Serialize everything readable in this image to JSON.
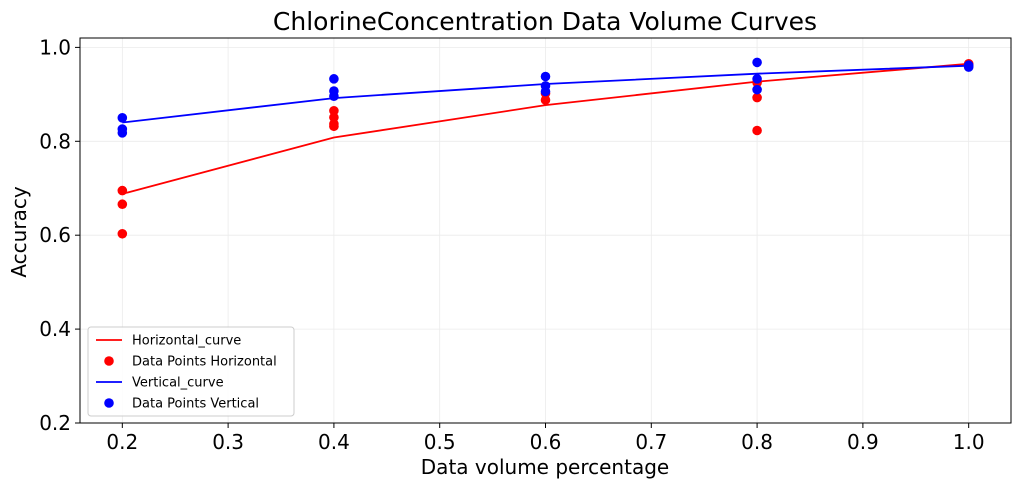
{
  "chart_data": {
    "type": "scatter",
    "title": "ChlorineConcentration Data Volume Curves",
    "xlabel": "Data volume percentage",
    "ylabel": "Accuracy",
    "xlim": [
      0.16,
      1.04
    ],
    "ylim": [
      0.2,
      1.02
    ],
    "xticks": [
      "0.2",
      "0.3",
      "0.4",
      "0.5",
      "0.6",
      "0.7",
      "0.8",
      "0.9",
      "1.0"
    ],
    "yticks": [
      "0.2",
      "0.4",
      "0.6",
      "0.8",
      "1.0"
    ],
    "grid": true,
    "legend_position": "lower-left",
    "series": [
      {
        "name": "Horizontal_curve",
        "kind": "line",
        "color": "#ff0000",
        "x": [
          0.2,
          0.4,
          0.6,
          0.8,
          1.0
        ],
        "y": [
          0.688,
          0.808,
          0.877,
          0.927,
          0.965
        ]
      },
      {
        "name": "Data Points Horizontal",
        "kind": "points",
        "color": "#ff0000",
        "x": [
          0.2,
          0.2,
          0.2,
          0.4,
          0.4,
          0.4,
          0.4,
          0.6,
          0.6,
          0.8,
          0.8,
          0.8,
          1.0,
          1.0
        ],
        "y": [
          0.695,
          0.666,
          0.603,
          0.865,
          0.851,
          0.837,
          0.832,
          0.888,
          0.902,
          0.893,
          0.823,
          0.925,
          0.965,
          0.962
        ]
      },
      {
        "name": "Vertical_curve",
        "kind": "line",
        "color": "#0000ff",
        "x": [
          0.2,
          0.4,
          0.6,
          0.8,
          1.0
        ],
        "y": [
          0.84,
          0.892,
          0.922,
          0.944,
          0.961
        ]
      },
      {
        "name": "Data Points Vertical",
        "kind": "points",
        "color": "#0000ff",
        "x": [
          0.2,
          0.2,
          0.2,
          0.4,
          0.4,
          0.4,
          0.6,
          0.6,
          0.6,
          0.8,
          0.8,
          0.8,
          1.0,
          1.0
        ],
        "y": [
          0.85,
          0.826,
          0.818,
          0.933,
          0.907,
          0.896,
          0.938,
          0.918,
          0.906,
          0.968,
          0.933,
          0.91,
          0.958,
          0.962
        ]
      }
    ]
  }
}
